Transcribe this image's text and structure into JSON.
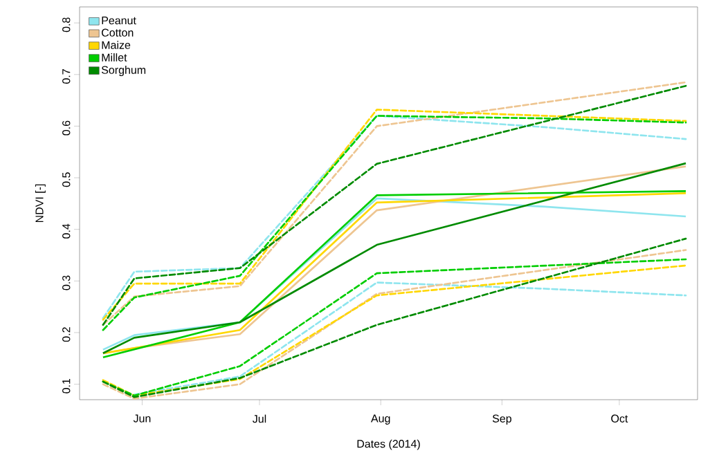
{
  "chart_data": {
    "type": "line",
    "xlabel": "Dates (2014)",
    "ylabel": "NDVI [-]",
    "xlim": [
      "2014-05-16",
      "2014-10-21"
    ],
    "xticks": [
      {
        "value": "2014-06-01",
        "label": "Jun"
      },
      {
        "value": "2014-07-01",
        "label": "Jul"
      },
      {
        "value": "2014-08-01",
        "label": "Aug"
      },
      {
        "value": "2014-09-01",
        "label": "Sep"
      },
      {
        "value": "2014-10-01",
        "label": "Oct"
      }
    ],
    "ylim": [
      0.07,
      0.831
    ],
    "yticks": [
      0.1,
      0.2,
      0.3,
      0.4,
      0.5,
      0.6,
      0.7,
      0.8
    ],
    "legend": "top left",
    "grid": false,
    "marker": "none",
    "line_style": "solid",
    "series": [
      {
        "color": "#8ee5ee",
        "line_style": "dashed",
        "x": [
          "2014-05-22",
          "2014-05-30",
          "2014-06-26",
          "2014-07-31",
          "2014-09-12",
          "2014-10-18"
        ],
        "values": [
          0.228,
          0.318,
          0.325,
          0.62,
          0.598,
          0.575
        ]
      },
      {
        "color": "#eec591",
        "line_style": "dashed",
        "x": [
          "2014-05-22",
          "2014-05-30",
          "2014-06-26",
          "2014-07-31",
          "2014-10-18"
        ],
        "values": [
          0.215,
          0.27,
          0.29,
          0.6,
          0.685
        ]
      },
      {
        "color": "#ffd700",
        "line_style": "dashed",
        "x": [
          "2014-05-22",
          "2014-05-30",
          "2014-06-26",
          "2014-07-31",
          "2014-10-18"
        ],
        "values": [
          0.225,
          0.295,
          0.295,
          0.632,
          0.61
        ]
      },
      {
        "color": "#00cd00",
        "line_style": "dashed",
        "x": [
          "2014-05-22",
          "2014-05-30",
          "2014-06-26",
          "2014-07-31",
          "2014-09-12",
          "2014-10-18"
        ],
        "values": [
          0.205,
          0.268,
          0.31,
          0.62,
          0.615,
          0.607
        ]
      },
      {
        "color": "#008b00",
        "line_style": "dashed",
        "x": [
          "2014-05-22",
          "2014-05-30",
          "2014-06-26",
          "2014-07-31",
          "2014-10-18"
        ],
        "values": [
          0.215,
          0.305,
          0.325,
          0.527,
          0.678
        ]
      },
      {
        "color": "#8ee5ee",
        "line_style": "dashed",
        "x": [
          "2014-05-30",
          "2014-06-26",
          "2014-07-31",
          "2014-09-12",
          "2014-10-18"
        ],
        "values": [
          0.08,
          0.115,
          0.297,
          0.285,
          0.272
        ]
      },
      {
        "color": "#eec591",
        "line_style": "dashed",
        "x": [
          "2014-05-22",
          "2014-05-30",
          "2014-06-26",
          "2014-07-31",
          "2014-10-18"
        ],
        "values": [
          0.1,
          0.072,
          0.1,
          0.275,
          0.36
        ]
      },
      {
        "color": "#ffd700",
        "line_style": "dashed",
        "x": [
          "2014-05-22",
          "2014-05-30",
          "2014-06-26",
          "2014-07-31",
          "2014-10-18"
        ],
        "values": [
          0.108,
          0.078,
          0.11,
          0.272,
          0.33
        ]
      },
      {
        "color": "#00cd00",
        "line_style": "dashed",
        "x": [
          "2014-05-22",
          "2014-05-30",
          "2014-06-26",
          "2014-07-31",
          "2014-10-18"
        ],
        "values": [
          0.105,
          0.078,
          0.135,
          0.315,
          0.342
        ]
      },
      {
        "color": "#008b00",
        "line_style": "dashed",
        "x": [
          "2014-05-22",
          "2014-05-30",
          "2014-06-26",
          "2014-07-31",
          "2014-10-18"
        ],
        "values": [
          0.105,
          0.075,
          0.112,
          0.215,
          0.382
        ]
      },
      {
        "name": "Peanut",
        "color": "#8ee5ee",
        "x": [
          "2014-05-22",
          "2014-05-30",
          "2014-06-26",
          "2014-07-31",
          "2014-09-12",
          "2014-10-18"
        ],
        "values": [
          0.167,
          0.195,
          0.22,
          0.46,
          0.444,
          0.425
        ]
      },
      {
        "name": "Cotton",
        "color": "#eec591",
        "x": [
          "2014-05-22",
          "2014-05-30",
          "2014-06-26",
          "2014-07-31",
          "2014-10-18"
        ],
        "values": [
          0.16,
          0.17,
          0.197,
          0.437,
          0.522
        ]
      },
      {
        "name": "Maize",
        "color": "#ffd700",
        "x": [
          "2014-05-22",
          "2014-05-30",
          "2014-06-26",
          "2014-07-31",
          "2014-10-18"
        ],
        "values": [
          0.16,
          0.17,
          0.205,
          0.452,
          0.47
        ]
      },
      {
        "name": "Millet",
        "color": "#00cd00",
        "x": [
          "2014-05-22",
          "2014-06-26",
          "2014-07-31",
          "2014-10-18"
        ],
        "values": [
          0.152,
          0.22,
          0.466,
          0.474
        ]
      },
      {
        "name": "Sorghum",
        "color": "#008b00",
        "x": [
          "2014-05-22",
          "2014-05-30",
          "2014-06-26",
          "2014-07-31",
          "2014-10-18"
        ],
        "values": [
          0.16,
          0.19,
          0.22,
          0.37,
          0.528
        ]
      }
    ]
  }
}
